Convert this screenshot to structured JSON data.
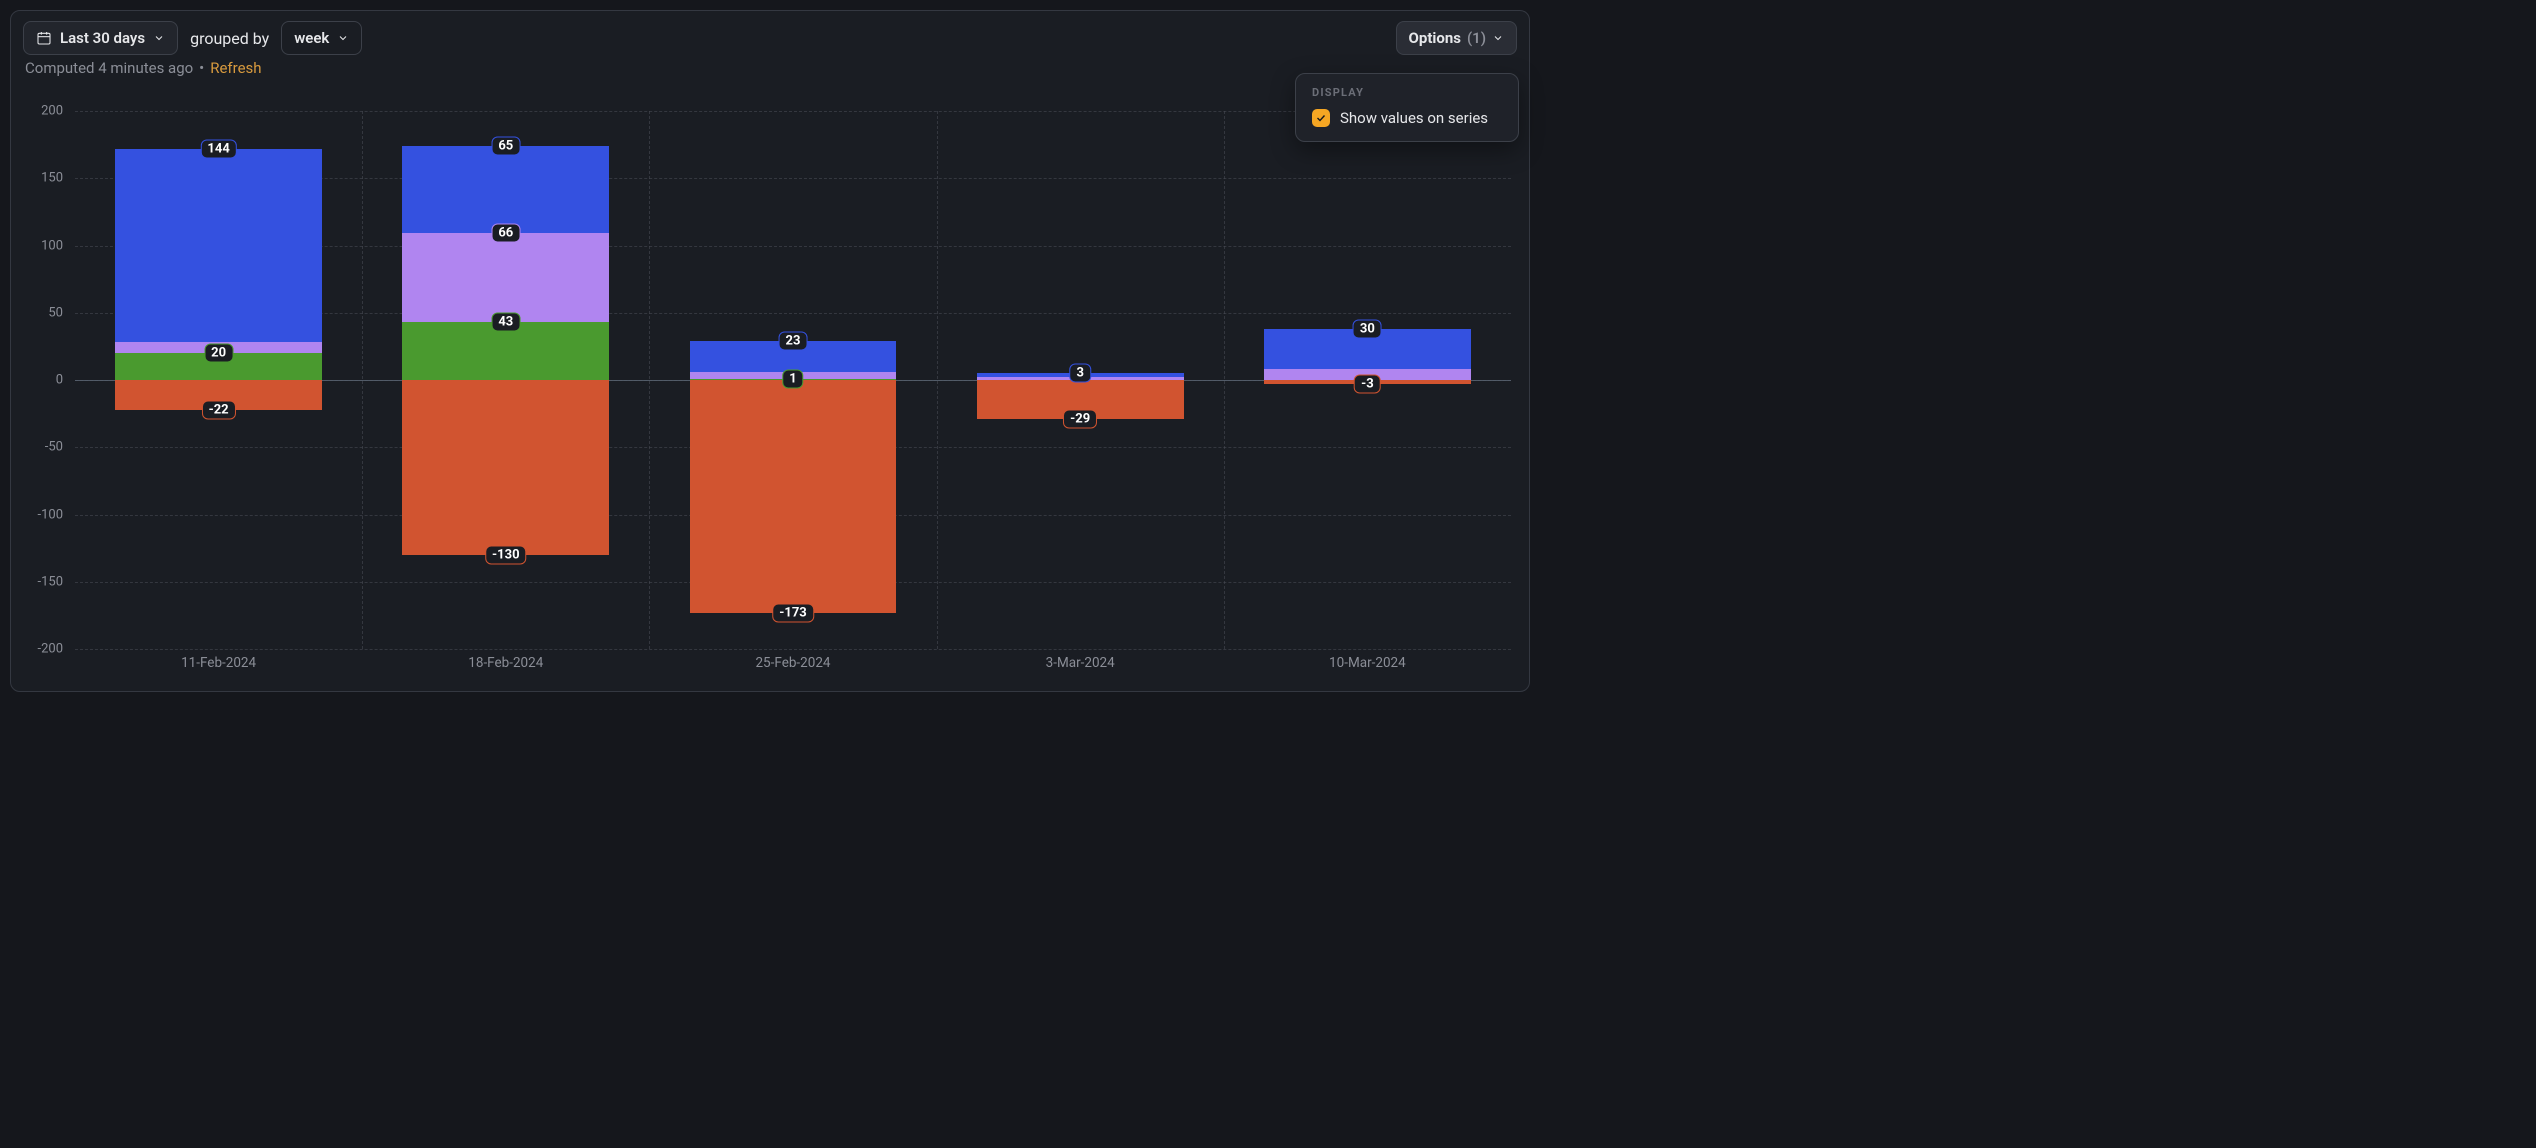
{
  "toolbar": {
    "range_label": "Last 30 days",
    "grouped_by_label": "grouped by",
    "group_value": "week",
    "options_label": "Options",
    "options_count": "(1)"
  },
  "status": {
    "computed_text": "Computed 4 minutes ago",
    "separator": "•",
    "refresh_label": "Refresh"
  },
  "popover": {
    "header": "DISPLAY",
    "show_values_label": "Show values on series",
    "show_values_checked": true
  },
  "chart": {
    "type": "stacked-bar",
    "background_color": "#1a1d23",
    "grid_color": "#4a4d56",
    "text_color": "#8b8e97",
    "ylim": [
      -200,
      200
    ],
    "yticks": [
      -200,
      -150,
      -100,
      -50,
      0,
      50,
      100,
      150,
      200
    ],
    "categories": [
      "11-Feb-2024",
      "18-Feb-2024",
      "25-Feb-2024",
      "3-Mar-2024",
      "10-Mar-2024"
    ],
    "series_colors": {
      "blue": "#3451e0",
      "purple": "#b085f0",
      "green": "#4a9a2f",
      "orange": "#d15430"
    },
    "bar_width_ratio": 0.72,
    "value_label_bg": "#1a1d23",
    "value_label_border_colors": {
      "blue": "#3451e0",
      "purple": "#b085f0",
      "green": "#4a9a2f",
      "orange": "#d15430"
    },
    "bars": [
      {
        "category": "11-Feb-2024",
        "pos": [
          {
            "series": "green",
            "value": 20,
            "label": "20"
          },
          {
            "series": "purple",
            "value": 8,
            "label": null
          },
          {
            "series": "blue",
            "value": 144,
            "label": "144"
          }
        ],
        "neg": [
          {
            "series": "orange",
            "value": -22,
            "label": "-22"
          }
        ]
      },
      {
        "category": "18-Feb-2024",
        "pos": [
          {
            "series": "green",
            "value": 43,
            "label": "43"
          },
          {
            "series": "purple",
            "value": 66,
            "label": "66"
          },
          {
            "series": "blue",
            "value": 65,
            "label": "65"
          }
        ],
        "neg": [
          {
            "series": "orange",
            "value": -130,
            "label": "-130"
          }
        ]
      },
      {
        "category": "25-Feb-2024",
        "pos": [
          {
            "series": "green",
            "value": 1,
            "label": "1"
          },
          {
            "series": "purple",
            "value": 5,
            "label": null
          },
          {
            "series": "blue",
            "value": 23,
            "label": "23"
          }
        ],
        "neg": [
          {
            "series": "orange",
            "value": -173,
            "label": "-173"
          }
        ]
      },
      {
        "category": "3-Mar-2024",
        "pos": [
          {
            "series": "purple",
            "value": 2,
            "label": null
          },
          {
            "series": "blue",
            "value": 3,
            "label": "3"
          }
        ],
        "neg": [
          {
            "series": "orange",
            "value": -29,
            "label": "-29"
          }
        ]
      },
      {
        "category": "10-Mar-2024",
        "pos": [
          {
            "series": "purple",
            "value": 8,
            "label": null
          },
          {
            "series": "blue",
            "value": 30,
            "label": "30"
          }
        ],
        "neg": [
          {
            "series": "orange",
            "value": -3,
            "label": "-3"
          }
        ]
      }
    ]
  }
}
